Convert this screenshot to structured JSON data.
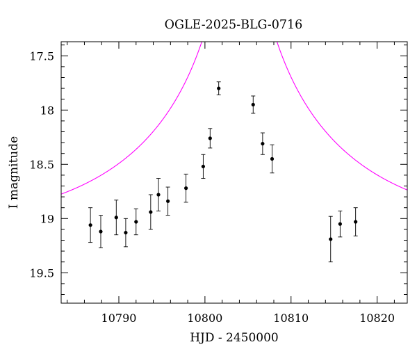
{
  "chart_data": {
    "type": "scatter",
    "title": "OGLE-2025-BLG-0716",
    "xlabel": "HJD - 2450000",
    "ylabel": "I magnitude",
    "xlim": [
      10783.3,
      10823.5
    ],
    "ylim": [
      19.78,
      17.37
    ],
    "y_inverted": true,
    "grid": false,
    "x_ticks": [
      10790,
      10800,
      10810,
      10820
    ],
    "y_ticks": [
      17.5,
      18,
      18.5,
      19,
      19.5
    ],
    "y_tick_labels": [
      "17.5",
      "18",
      "18.5",
      "19",
      "19.5"
    ],
    "x_minor_step": 2,
    "y_minor_step": 0.1,
    "series": [
      {
        "values": [
          {
            "x": 10786.7,
            "y": 19.06,
            "err": 0.16
          },
          {
            "x": 10787.9,
            "y": 19.12,
            "err": 0.15
          },
          {
            "x": 10789.7,
            "y": 18.99,
            "err": 0.16
          },
          {
            "x": 10790.8,
            "y": 19.13,
            "err": 0.13
          },
          {
            "x": 10792.0,
            "y": 19.03,
            "err": 0.12
          },
          {
            "x": 10793.7,
            "y": 18.94,
            "err": 0.16
          },
          {
            "x": 10794.6,
            "y": 18.78,
            "err": 0.15
          },
          {
            "x": 10795.7,
            "y": 18.84,
            "err": 0.13
          },
          {
            "x": 10797.8,
            "y": 18.72,
            "err": 0.13
          },
          {
            "x": 10799.8,
            "y": 18.52,
            "err": 0.11
          },
          {
            "x": 10800.6,
            "y": 18.26,
            "err": 0.09
          },
          {
            "x": 10801.6,
            "y": 17.8,
            "err": 0.06
          },
          {
            "x": 10805.6,
            "y": 17.95,
            "err": 0.08
          },
          {
            "x": 10806.7,
            "y": 18.31,
            "err": 0.1
          },
          {
            "x": 10807.8,
            "y": 18.45,
            "err": 0.13
          },
          {
            "x": 10814.6,
            "y": 19.19,
            "err": 0.21
          },
          {
            "x": 10815.7,
            "y": 19.05,
            "err": 0.12
          },
          {
            "x": 10817.5,
            "y": 19.03,
            "err": 0.13
          }
        ]
      },
      {
        "type": "line",
        "color": "#ff00ff",
        "model": {
          "kind": "point-lens",
          "t0": 10804.0,
          "tE": 22.0,
          "u0": 0.03,
          "I_base": 19.13
        }
      }
    ]
  }
}
